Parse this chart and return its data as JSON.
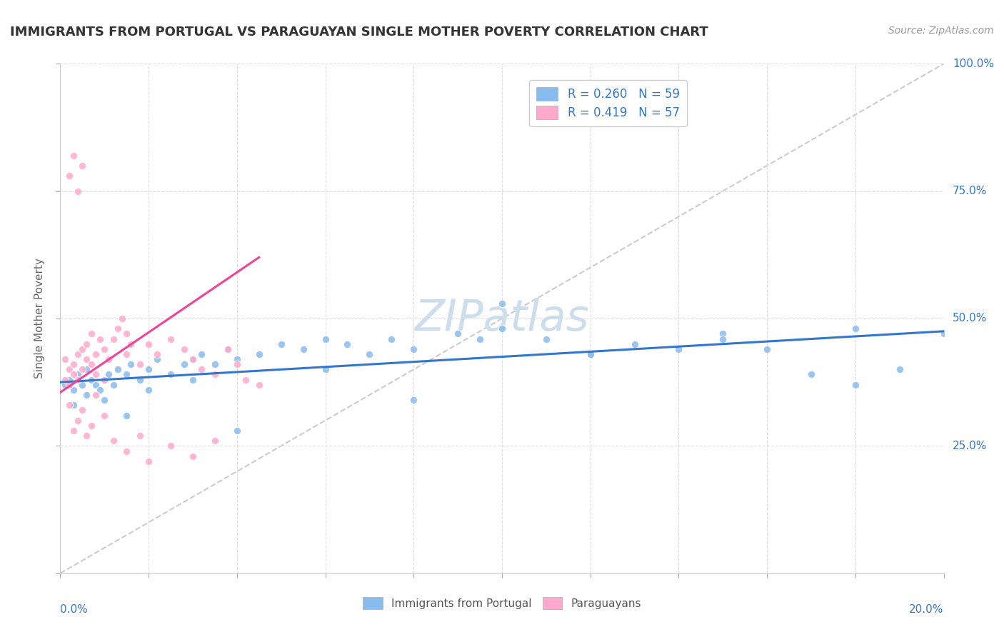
{
  "title": "IMMIGRANTS FROM PORTUGAL VS PARAGUAYAN SINGLE MOTHER POVERTY CORRELATION CHART",
  "source": "Source: ZipAtlas.com",
  "ylabel": "Single Mother Poverty",
  "legend_label1": "Immigrants from Portugal",
  "legend_label2": "Paraguayans",
  "legend_r1": "R = 0.260",
  "legend_n1": "N = 59",
  "legend_r2": "R = 0.419",
  "legend_n2": "N = 57",
  "blue_color": "#88bbee",
  "pink_color": "#ffaacc",
  "blue_line_color": "#3377cc",
  "pink_line_color": "#ee4499",
  "watermark_color": "#ccddee",
  "blue_x": [
    0.001,
    0.002,
    0.003,
    0.004,
    0.005,
    0.006,
    0.007,
    0.008,
    0.009,
    0.01,
    0.011,
    0.012,
    0.013,
    0.015,
    0.016,
    0.018,
    0.02,
    0.022,
    0.025,
    0.028,
    0.03,
    0.032,
    0.035,
    0.038,
    0.04,
    0.045,
    0.05,
    0.055,
    0.06,
    0.065,
    0.07,
    0.075,
    0.08,
    0.09,
    0.095,
    0.1,
    0.11,
    0.12,
    0.13,
    0.14,
    0.15,
    0.16,
    0.17,
    0.18,
    0.19,
    0.2,
    0.003,
    0.006,
    0.01,
    0.015,
    0.02,
    0.03,
    0.04,
    0.06,
    0.08,
    0.1,
    0.12,
    0.15,
    0.18
  ],
  "blue_y": [
    0.37,
    0.38,
    0.36,
    0.39,
    0.37,
    0.4,
    0.38,
    0.37,
    0.36,
    0.38,
    0.39,
    0.37,
    0.4,
    0.39,
    0.41,
    0.38,
    0.4,
    0.42,
    0.39,
    0.41,
    0.42,
    0.43,
    0.41,
    0.44,
    0.42,
    0.43,
    0.45,
    0.44,
    0.46,
    0.45,
    0.43,
    0.46,
    0.44,
    0.47,
    0.46,
    0.48,
    0.46,
    0.43,
    0.45,
    0.44,
    0.47,
    0.44,
    0.39,
    0.48,
    0.4,
    0.47,
    0.33,
    0.35,
    0.34,
    0.31,
    0.36,
    0.38,
    0.28,
    0.4,
    0.34,
    0.53,
    0.43,
    0.46,
    0.37
  ],
  "pink_x": [
    0.001,
    0.001,
    0.002,
    0.002,
    0.003,
    0.003,
    0.004,
    0.004,
    0.005,
    0.005,
    0.006,
    0.006,
    0.007,
    0.007,
    0.008,
    0.008,
    0.009,
    0.01,
    0.01,
    0.011,
    0.012,
    0.013,
    0.014,
    0.015,
    0.015,
    0.016,
    0.018,
    0.02,
    0.022,
    0.025,
    0.028,
    0.03,
    0.032,
    0.035,
    0.038,
    0.04,
    0.042,
    0.045,
    0.002,
    0.003,
    0.004,
    0.005,
    0.006,
    0.007,
    0.008,
    0.01,
    0.012,
    0.015,
    0.018,
    0.02,
    0.025,
    0.03,
    0.035,
    0.002,
    0.003,
    0.004,
    0.005
  ],
  "pink_y": [
    0.38,
    0.42,
    0.4,
    0.37,
    0.41,
    0.39,
    0.43,
    0.38,
    0.44,
    0.4,
    0.42,
    0.45,
    0.41,
    0.47,
    0.43,
    0.39,
    0.46,
    0.44,
    0.38,
    0.42,
    0.46,
    0.48,
    0.5,
    0.43,
    0.47,
    0.45,
    0.41,
    0.45,
    0.43,
    0.46,
    0.44,
    0.42,
    0.4,
    0.39,
    0.44,
    0.41,
    0.38,
    0.37,
    0.33,
    0.28,
    0.3,
    0.32,
    0.27,
    0.29,
    0.35,
    0.31,
    0.26,
    0.24,
    0.27,
    0.22,
    0.25,
    0.23,
    0.26,
    0.78,
    0.82,
    0.75,
    0.8
  ],
  "blue_line_x": [
    0.0,
    0.2
  ],
  "blue_line_y": [
    0.375,
    0.475
  ],
  "pink_line_x": [
    0.0,
    0.045
  ],
  "pink_line_y": [
    0.355,
    0.62
  ],
  "diag_line_x": [
    0.0,
    0.2
  ],
  "diag_line_y": [
    0.0,
    1.0
  ],
  "xlim": [
    0.0,
    0.2
  ],
  "ylim": [
    0.0,
    1.0
  ],
  "yticks": [
    0.0,
    0.25,
    0.5,
    0.75,
    1.0
  ],
  "ytick_labels": [
    "",
    "25.0%",
    "50.0%",
    "75.0%",
    "100.0%"
  ]
}
